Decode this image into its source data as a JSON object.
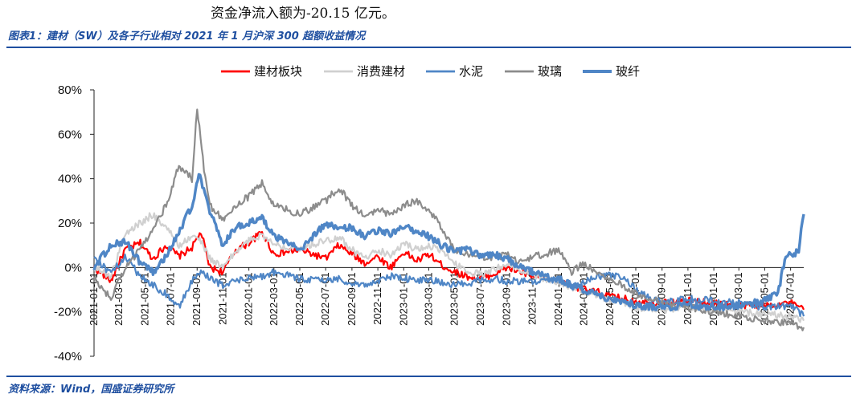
{
  "header": {
    "top_text": "资金净流入额为-20.15 亿元。",
    "figure_title": "图表1：建材（SW）及各子行业相对 2021 年 1 月沪深 300 超额收益情况",
    "source": "资料来源：Wind，国盛证券研究所"
  },
  "chart_data": {
    "type": "line",
    "title": "",
    "xlabel": "",
    "ylabel": "",
    "ylim": [
      -40,
      80
    ],
    "yticks": [
      "80%",
      "60%",
      "40%",
      "20%",
      "0%",
      "-20%",
      "-40%"
    ],
    "ytick_values": [
      80,
      60,
      40,
      20,
      0,
      -20,
      -40
    ],
    "xticks": [
      "2021-01-01",
      "2021-03-01",
      "2021-05-01",
      "2021-07-01",
      "2021-09-01",
      "2021-11-01",
      "2022-01-01",
      "2022-03-01",
      "2022-05-01",
      "2022-07-01",
      "2022-09-01",
      "2022-11-01",
      "2023-01-01",
      "2023-03-01",
      "2023-05-01",
      "2023-07-01",
      "2023-09-01",
      "2023-11-01",
      "2024-01-01",
      "2024-03-01",
      "2024-05-01",
      "2024-07-01",
      "2024-09-01",
      "2024-11-01",
      "2025-01-01",
      "2025-03-01",
      "2025-05-01",
      "2025-07-01"
    ],
    "grid": false,
    "legend_position": "top",
    "series": [
      {
        "name": "建材板块",
        "color": "#ff0000",
        "width": 2.2,
        "points": [
          [
            "2021-01-01",
            0
          ],
          [
            "2021-02-10",
            -6
          ],
          [
            "2021-03-15",
            8
          ],
          [
            "2021-04-20",
            11
          ],
          [
            "2021-05-20",
            4
          ],
          [
            "2021-06-20",
            10
          ],
          [
            "2021-07-20",
            5
          ],
          [
            "2021-08-20",
            9
          ],
          [
            "2021-09-10",
            16
          ],
          [
            "2021-10-01",
            0
          ],
          [
            "2021-11-01",
            -2
          ],
          [
            "2021-12-01",
            8
          ],
          [
            "2022-01-01",
            11
          ],
          [
            "2022-02-01",
            16
          ],
          [
            "2022-03-01",
            6
          ],
          [
            "2022-05-01",
            8
          ],
          [
            "2022-07-01",
            4
          ],
          [
            "2022-08-01",
            10
          ],
          [
            "2022-09-01",
            6
          ],
          [
            "2022-10-01",
            2
          ],
          [
            "2022-11-01",
            5
          ],
          [
            "2022-12-01",
            0
          ],
          [
            "2023-01-01",
            7
          ],
          [
            "2023-02-01",
            3
          ],
          [
            "2023-03-01",
            6
          ],
          [
            "2023-04-01",
            1
          ],
          [
            "2023-05-01",
            -2
          ],
          [
            "2023-06-01",
            -4
          ],
          [
            "2023-07-01",
            -5
          ],
          [
            "2023-08-01",
            -3
          ],
          [
            "2023-09-01",
            0
          ],
          [
            "2023-10-01",
            -2
          ],
          [
            "2023-11-01",
            -4
          ],
          [
            "2023-12-01",
            -5
          ],
          [
            "2024-01-01",
            -6
          ],
          [
            "2024-02-01",
            -8
          ],
          [
            "2024-03-01",
            -10
          ],
          [
            "2024-04-01",
            -11
          ],
          [
            "2024-05-01",
            -13
          ],
          [
            "2024-06-01",
            -14
          ],
          [
            "2024-07-01",
            -15
          ],
          [
            "2024-09-01",
            -16
          ],
          [
            "2024-11-01",
            -15
          ],
          [
            "2025-01-01",
            -16
          ],
          [
            "2025-03-01",
            -17
          ],
          [
            "2025-05-01",
            -17
          ],
          [
            "2025-07-01",
            -16
          ],
          [
            "2025-08-01",
            -19
          ]
        ]
      },
      {
        "name": "消费建材",
        "color": "#d0d0d0",
        "width": 2.2,
        "points": [
          [
            "2021-01-01",
            0
          ],
          [
            "2021-02-10",
            -4
          ],
          [
            "2021-03-15",
            15
          ],
          [
            "2021-04-20",
            20
          ],
          [
            "2021-05-20",
            24
          ],
          [
            "2021-06-20",
            18
          ],
          [
            "2021-07-20",
            10
          ],
          [
            "2021-08-20",
            14
          ],
          [
            "2021-09-10",
            12
          ],
          [
            "2021-10-01",
            4
          ],
          [
            "2021-11-01",
            0
          ],
          [
            "2021-12-01",
            7
          ],
          [
            "2022-01-01",
            12
          ],
          [
            "2022-02-01",
            15
          ],
          [
            "2022-03-01",
            10
          ],
          [
            "2022-05-01",
            9
          ],
          [
            "2022-07-01",
            12
          ],
          [
            "2022-08-01",
            14
          ],
          [
            "2022-09-01",
            8
          ],
          [
            "2022-10-01",
            4
          ],
          [
            "2022-11-01",
            8
          ],
          [
            "2022-12-01",
            5
          ],
          [
            "2023-01-01",
            11
          ],
          [
            "2023-02-01",
            8
          ],
          [
            "2023-03-01",
            10
          ],
          [
            "2023-04-01",
            7
          ],
          [
            "2023-05-01",
            2
          ],
          [
            "2023-06-01",
            -2
          ],
          [
            "2023-07-01",
            -3
          ],
          [
            "2023-08-01",
            -1
          ],
          [
            "2023-09-01",
            2
          ],
          [
            "2023-10-01",
            -1
          ],
          [
            "2023-11-01",
            -3
          ],
          [
            "2023-12-01",
            -5
          ],
          [
            "2024-01-01",
            -7
          ],
          [
            "2024-02-01",
            -9
          ],
          [
            "2024-03-01",
            -11
          ],
          [
            "2024-04-01",
            -13
          ],
          [
            "2024-05-01",
            -15
          ],
          [
            "2024-06-01",
            -16
          ],
          [
            "2024-07-01",
            -18
          ],
          [
            "2024-09-01",
            -19
          ],
          [
            "2024-11-01",
            -18
          ],
          [
            "2025-01-01",
            -19
          ],
          [
            "2025-03-01",
            -20
          ],
          [
            "2025-05-01",
            -21
          ],
          [
            "2025-07-01",
            -22
          ],
          [
            "2025-08-01",
            -24
          ]
        ]
      },
      {
        "name": "水泥",
        "color": "#4f86c6",
        "width": 2.2,
        "points": [
          [
            "2021-01-01",
            5
          ],
          [
            "2021-02-10",
            -3
          ],
          [
            "2021-03-15",
            5
          ],
          [
            "2021-04-20",
            -4
          ],
          [
            "2021-05-20",
            -8
          ],
          [
            "2021-06-20",
            -12
          ],
          [
            "2021-07-20",
            -18
          ],
          [
            "2021-08-20",
            -6
          ],
          [
            "2021-09-10",
            -2
          ],
          [
            "2021-10-01",
            -5
          ],
          [
            "2021-11-01",
            -8
          ],
          [
            "2021-12-01",
            -6
          ],
          [
            "2022-01-01",
            -5
          ],
          [
            "2022-02-01",
            -4
          ],
          [
            "2022-03-01",
            -2
          ],
          [
            "2022-05-01",
            -5
          ],
          [
            "2022-07-01",
            -6
          ],
          [
            "2022-08-01",
            -5
          ],
          [
            "2022-09-01",
            -7
          ],
          [
            "2022-10-01",
            -8
          ],
          [
            "2022-11-01",
            -6
          ],
          [
            "2022-12-01",
            -4
          ],
          [
            "2023-01-01",
            -5
          ],
          [
            "2023-02-01",
            -6
          ],
          [
            "2023-03-01",
            -5
          ],
          [
            "2023-04-01",
            -7
          ],
          [
            "2023-05-01",
            -8
          ],
          [
            "2023-06-01",
            -7
          ],
          [
            "2023-07-01",
            -6
          ],
          [
            "2023-08-01",
            -5
          ],
          [
            "2023-09-01",
            -6
          ],
          [
            "2023-10-01",
            -6
          ],
          [
            "2023-11-01",
            -7
          ],
          [
            "2023-12-01",
            -6
          ],
          [
            "2024-01-01",
            -5
          ],
          [
            "2024-02-01",
            -8
          ],
          [
            "2024-03-01",
            -6
          ],
          [
            "2024-04-01",
            -4
          ],
          [
            "2024-05-01",
            -3
          ],
          [
            "2024-06-01",
            -5
          ],
          [
            "2024-07-01",
            -10
          ],
          [
            "2024-09-01",
            -16
          ],
          [
            "2024-11-01",
            -14
          ],
          [
            "2025-01-01",
            -15
          ],
          [
            "2025-03-01",
            -16
          ],
          [
            "2025-05-01",
            -18
          ],
          [
            "2025-07-01",
            -17
          ],
          [
            "2025-08-01",
            -22
          ]
        ]
      },
      {
        "name": "玻璃",
        "color": "#8c8c8c",
        "width": 2.2,
        "points": [
          [
            "2021-01-01",
            -5
          ],
          [
            "2021-02-10",
            -14
          ],
          [
            "2021-03-15",
            0
          ],
          [
            "2021-04-20",
            8
          ],
          [
            "2021-05-20",
            18
          ],
          [
            "2021-06-20",
            28
          ],
          [
            "2021-07-20",
            46
          ],
          [
            "2021-08-20",
            40
          ],
          [
            "2021-09-01",
            72
          ],
          [
            "2021-09-20",
            40
          ],
          [
            "2021-10-01",
            28
          ],
          [
            "2021-11-01",
            22
          ],
          [
            "2021-12-01",
            28
          ],
          [
            "2022-01-01",
            32
          ],
          [
            "2022-02-01",
            38
          ],
          [
            "2022-03-01",
            28
          ],
          [
            "2022-05-01",
            24
          ],
          [
            "2022-07-01",
            30
          ],
          [
            "2022-08-01",
            36
          ],
          [
            "2022-09-01",
            28
          ],
          [
            "2022-10-01",
            23
          ],
          [
            "2022-11-01",
            26
          ],
          [
            "2022-12-01",
            24
          ],
          [
            "2023-01-01",
            28
          ],
          [
            "2023-02-01",
            30
          ],
          [
            "2023-03-01",
            26
          ],
          [
            "2023-04-01",
            18
          ],
          [
            "2023-05-01",
            8
          ],
          [
            "2023-06-01",
            6
          ],
          [
            "2023-07-01",
            5
          ],
          [
            "2023-08-01",
            4
          ],
          [
            "2023-09-01",
            6
          ],
          [
            "2023-10-01",
            2
          ],
          [
            "2023-11-01",
            5
          ],
          [
            "2023-12-01",
            6
          ],
          [
            "2024-01-01",
            8
          ],
          [
            "2024-02-01",
            -2
          ],
          [
            "2024-03-01",
            2
          ],
          [
            "2024-04-01",
            -2
          ],
          [
            "2024-05-01",
            -5
          ],
          [
            "2024-06-01",
            -8
          ],
          [
            "2024-07-01",
            -12
          ],
          [
            "2024-09-01",
            -16
          ],
          [
            "2024-11-01",
            -18
          ],
          [
            "2025-01-01",
            -20
          ],
          [
            "2025-03-01",
            -22
          ],
          [
            "2025-05-01",
            -24
          ],
          [
            "2025-07-01",
            -25
          ],
          [
            "2025-08-01",
            -27
          ]
        ]
      },
      {
        "name": "玻纤",
        "color": "#4f86c6",
        "width": 3.4,
        "points": [
          [
            "2021-01-01",
            0
          ],
          [
            "2021-02-10",
            10
          ],
          [
            "2021-03-15",
            12
          ],
          [
            "2021-04-20",
            2
          ],
          [
            "2021-05-20",
            -2
          ],
          [
            "2021-06-20",
            5
          ],
          [
            "2021-07-20",
            16
          ],
          [
            "2021-08-20",
            28
          ],
          [
            "2021-09-05",
            42
          ],
          [
            "2021-10-01",
            25
          ],
          [
            "2021-11-01",
            10
          ],
          [
            "2021-12-01",
            18
          ],
          [
            "2022-01-01",
            20
          ],
          [
            "2022-02-01",
            22
          ],
          [
            "2022-03-01",
            14
          ],
          [
            "2022-05-01",
            8
          ],
          [
            "2022-07-01",
            20
          ],
          [
            "2022-08-01",
            17
          ],
          [
            "2022-09-01",
            18
          ],
          [
            "2022-10-01",
            14
          ],
          [
            "2022-11-01",
            17
          ],
          [
            "2022-12-01",
            15
          ],
          [
            "2023-01-01",
            19
          ],
          [
            "2023-02-01",
            16
          ],
          [
            "2023-03-01",
            14
          ],
          [
            "2023-04-01",
            10
          ],
          [
            "2023-05-01",
            7
          ],
          [
            "2023-06-01",
            8
          ],
          [
            "2023-07-01",
            5
          ],
          [
            "2023-08-01",
            6
          ],
          [
            "2023-09-01",
            4
          ],
          [
            "2023-10-01",
            0
          ],
          [
            "2023-11-01",
            -2
          ],
          [
            "2023-12-01",
            -4
          ],
          [
            "2024-01-01",
            -5
          ],
          [
            "2024-02-01",
            -8
          ],
          [
            "2024-03-01",
            -10
          ],
          [
            "2024-04-01",
            -12
          ],
          [
            "2024-05-01",
            -14
          ],
          [
            "2024-06-01",
            -15
          ],
          [
            "2024-07-01",
            -17
          ],
          [
            "2024-09-01",
            -18
          ],
          [
            "2024-11-01",
            -17
          ],
          [
            "2025-01-01",
            -18
          ],
          [
            "2025-03-01",
            -17
          ],
          [
            "2025-05-01",
            -15
          ],
          [
            "2025-06-01",
            -12
          ],
          [
            "2025-06-20",
            6
          ],
          [
            "2025-07-01",
            5
          ],
          [
            "2025-07-20",
            8
          ],
          [
            "2025-08-01",
            24
          ]
        ]
      }
    ]
  }
}
